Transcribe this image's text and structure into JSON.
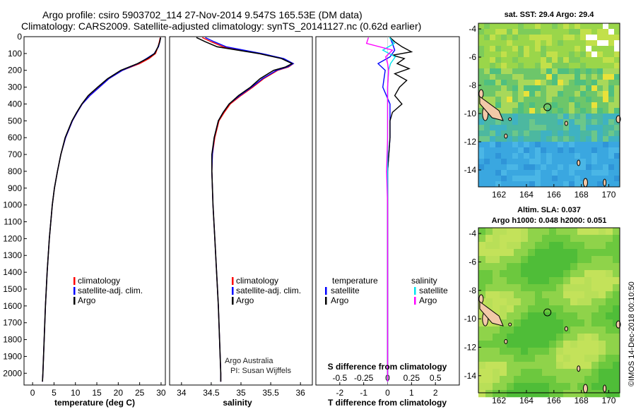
{
  "header": {
    "line1": "Argo profile: csiro 5903702_114 27-Nov-2014 9.547S 165.53E (DM data)",
    "line2": "Climatology: CARS2009. Satellite-adjusted climatology: synTS_20141127.nc (0.62d earlier)"
  },
  "credit": "©IMOS 14-Dec-2018 00:10:50",
  "colors": {
    "climatology": "#ff0000",
    "satellite": "#0000ff",
    "argo": "#000000",
    "sat_salinity": "#00e5ee",
    "argo_salinity_diff": "#ff00ff"
  },
  "chart_data": [
    {
      "type": "line",
      "panel": "temperature",
      "xlabel": "temperature (deg C)",
      "xlim": [
        -2,
        31
      ],
      "xticks": [
        0,
        5,
        10,
        15,
        20,
        25,
        30
      ],
      "ylim": [
        2070,
        0
      ],
      "yticks": [
        0,
        100,
        200,
        300,
        400,
        500,
        600,
        700,
        800,
        900,
        1000,
        1100,
        1200,
        1300,
        1400,
        1500,
        1600,
        1700,
        1800,
        1900,
        2000
      ],
      "legend": [
        "climatology",
        "satellite-adj. clim.",
        "Argo"
      ],
      "series": [
        {
          "name": "climatology",
          "depth": [
            5,
            30,
            60,
            100,
            130,
            160,
            200,
            250,
            300,
            350,
            400,
            450,
            500,
            600,
            700,
            800,
            900,
            1000,
            1200,
            1400,
            1600,
            1800,
            2000,
            2050
          ],
          "values": [
            29.8,
            29.6,
            29.3,
            28.7,
            27.2,
            25.0,
            21.0,
            17.8,
            15.6,
            13.4,
            11.6,
            10.4,
            9.3,
            7.7,
            6.6,
            5.8,
            5.1,
            4.6,
            3.9,
            3.4,
            3.0,
            2.7,
            2.4,
            2.3
          ]
        },
        {
          "name": "satellite-adj. clim.",
          "depth": [
            5,
            30,
            60,
            100,
            130,
            160,
            200,
            250,
            300,
            350,
            400,
            450,
            500,
            600,
            700,
            800,
            900,
            1000,
            1200,
            1400,
            1600,
            1800,
            2000,
            2050
          ],
          "values": [
            29.9,
            29.7,
            29.4,
            28.4,
            26.6,
            24.6,
            21.0,
            17.8,
            15.6,
            13.4,
            11.6,
            10.4,
            9.3,
            7.7,
            6.6,
            5.8,
            5.1,
            4.6,
            3.9,
            3.4,
            3.0,
            2.7,
            2.4,
            2.3
          ]
        },
        {
          "name": "Argo",
          "depth": [
            5,
            30,
            60,
            100,
            130,
            160,
            200,
            250,
            300,
            350,
            400,
            450,
            500,
            600,
            700,
            800,
            900,
            1000,
            1200,
            1400,
            1600,
            1800,
            2000,
            2050
          ],
          "values": [
            29.9,
            29.7,
            29.3,
            28.5,
            26.8,
            24.5,
            20.6,
            17.5,
            15.2,
            13.0,
            11.5,
            10.3,
            9.2,
            7.6,
            6.6,
            5.8,
            5.1,
            4.6,
            3.9,
            3.4,
            3.0,
            2.7,
            2.4,
            2.3
          ]
        }
      ]
    },
    {
      "type": "line",
      "panel": "salinity",
      "xlabel": "salinity",
      "xlim": [
        33.8,
        36.2
      ],
      "xticks": [
        34,
        34.5,
        35,
        35.5,
        36
      ],
      "ylim": [
        2070,
        0
      ],
      "legend": [
        "climatology",
        "satellite-adj. clim.",
        "Argo"
      ],
      "annotation": [
        "Argo Australia",
        "PI: Susan Wijffels"
      ],
      "series": [
        {
          "name": "climatology",
          "depth": [
            5,
            30,
            60,
            100,
            130,
            160,
            180,
            200,
            250,
            300,
            350,
            400,
            450,
            500,
            600,
            700,
            800,
            900,
            1000,
            1200,
            1400,
            1600,
            1800,
            2000,
            2050
          ],
          "values": [
            34.35,
            34.5,
            34.7,
            35.3,
            35.7,
            35.88,
            35.8,
            35.62,
            35.38,
            35.2,
            35.0,
            34.82,
            34.72,
            34.63,
            34.56,
            34.52,
            34.51,
            34.52,
            34.53,
            34.56,
            34.59,
            34.62,
            34.64,
            34.66,
            34.66
          ]
        },
        {
          "name": "satellite-adj. clim.",
          "depth": [
            5,
            30,
            60,
            100,
            130,
            160,
            180,
            200,
            250,
            300,
            350,
            400,
            450,
            500,
            600,
            700,
            800,
            900,
            1000,
            1200,
            1400,
            1600,
            1800,
            2000,
            2050
          ],
          "values": [
            34.4,
            34.55,
            34.75,
            35.35,
            35.72,
            35.88,
            35.78,
            35.6,
            35.36,
            35.18,
            34.98,
            34.8,
            34.7,
            34.62,
            34.55,
            34.52,
            34.51,
            34.52,
            34.53,
            34.56,
            34.59,
            34.62,
            34.64,
            34.66,
            34.66
          ]
        },
        {
          "name": "Argo",
          "depth": [
            5,
            30,
            60,
            100,
            130,
            160,
            180,
            200,
            250,
            300,
            350,
            400,
            450,
            500,
            600,
            700,
            800,
            900,
            1000,
            1200,
            1400,
            1600,
            1800,
            2000,
            2050
          ],
          "values": [
            34.25,
            34.4,
            34.6,
            35.3,
            35.68,
            35.86,
            35.75,
            35.55,
            35.32,
            35.16,
            34.96,
            34.8,
            34.7,
            34.62,
            34.55,
            34.51,
            34.51,
            34.52,
            34.53,
            34.56,
            34.59,
            34.62,
            34.64,
            34.66,
            34.66
          ]
        }
      ]
    },
    {
      "type": "line",
      "panel": "differences",
      "xlabel": "T difference from climatology",
      "x2label": "S difference from climatology",
      "xlim": [
        -3,
        3
      ],
      "xticks": [
        -2,
        -1,
        0,
        1,
        2
      ],
      "xticks_top": [
        "-0.5",
        "-0.25",
        "0",
        "0.25",
        "0.5"
      ],
      "ylim": [
        2070,
        0
      ],
      "legend_left_title": "temperature",
      "legend_right_title": "salinity",
      "legend_left": [
        "satellite",
        "Argo"
      ],
      "legend_right": [
        "satellite",
        "Argo"
      ],
      "series": [
        {
          "name": "temperature satellite",
          "depth": [
            5,
            40,
            80,
            120,
            160,
            200,
            300,
            400,
            600,
            800,
            1000,
            1500,
            2000,
            2050
          ],
          "values": [
            0.1,
            0.2,
            0.3,
            0.1,
            -0.4,
            -0.1,
            -0.2,
            0.1,
            0.1,
            0.0,
            0.0,
            0.0,
            0.0,
            0.0
          ]
        },
        {
          "name": "temperature Argo",
          "depth": [
            5,
            30,
            60,
            90,
            110,
            130,
            160,
            190,
            220,
            260,
            300,
            350,
            400,
            450,
            500,
            600,
            800,
            1000,
            1500,
            2000,
            2050
          ],
          "values": [
            0.1,
            0.3,
            0.6,
            1.0,
            0.2,
            0.7,
            0.4,
            0.9,
            0.3,
            0.8,
            0.5,
            0.3,
            0.6,
            0.2,
            0.1,
            0.1,
            0.0,
            0.0,
            0.0,
            0.0,
            0.0
          ]
        },
        {
          "name": "salinity satellite",
          "depth": [
            5,
            40,
            80,
            120,
            160,
            200,
            300,
            400,
            600,
            800,
            1000,
            1500,
            2000,
            2050
          ],
          "values": [
            0.02,
            0.07,
            -0.05,
            0.08,
            0.03,
            0.01,
            0.0,
            0.0,
            0.0,
            0.0,
            0.0,
            0.0,
            0.0,
            0.0
          ]
        },
        {
          "name": "salinity Argo",
          "depth": [
            5,
            40,
            80,
            120,
            160,
            200,
            300,
            400,
            600,
            800,
            1000,
            1500,
            2000,
            2050
          ],
          "values": [
            -0.2,
            -0.22,
            0.05,
            -0.02,
            0.0,
            0.01,
            0.0,
            0.0,
            0.0,
            -0.01,
            0.0,
            0.0,
            0.0,
            0.0
          ]
        }
      ]
    },
    {
      "type": "heatmap",
      "panel": "sst-map",
      "title": "sat. SST: 29.4 Argo: 29.4",
      "xticks": [
        "162",
        "164",
        "166",
        "168",
        "170"
      ],
      "yticks": [
        "-4",
        "-6",
        "-8",
        "-10",
        "-12",
        "-14"
      ],
      "xlim": [
        160.5,
        170.8
      ],
      "ylim": [
        -15.2,
        -3.6
      ],
      "marker": {
        "lon": 165.53,
        "lat": -9.547
      }
    },
    {
      "type": "heatmap",
      "panel": "sla-map",
      "title": "Altim. SLA: 0.037",
      "subtitle": "Argo h1000: 0.048 h2000: 0.051",
      "xticks": [
        "162",
        "164",
        "166",
        "168",
        "170"
      ],
      "yticks": [
        "-4",
        "-6",
        "-8",
        "-10",
        "-12",
        "-14"
      ],
      "xlim": [
        160.5,
        170.8
      ],
      "ylim": [
        -15.2,
        -3.6
      ],
      "marker": {
        "lon": 165.53,
        "lat": -9.547
      }
    }
  ]
}
